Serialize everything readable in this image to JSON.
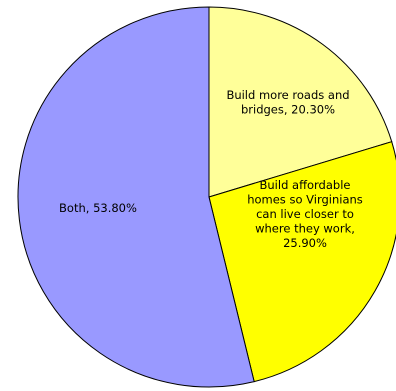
{
  "chart_data": {
    "type": "pie",
    "title": "",
    "slices": [
      {
        "label": "Build more roads and bridges",
        "value": 20.3,
        "display": [
          "Build more roads and",
          "bridges, 20.30%"
        ],
        "color": "#FFFF99"
      },
      {
        "label": "Build affordable homes so Virginians can live closer to where they work",
        "value": 25.9,
        "display": [
          "Build affordable",
          "homes so Virginians",
          "can live closer to",
          "where they work,",
          "25.90%"
        ],
        "color": "#FFFF00"
      },
      {
        "label": "Both",
        "value": 53.8,
        "display": [
          "Both, 53.80%"
        ],
        "color": "#9999FF"
      }
    ],
    "start_angle_deg": 0,
    "direction": "clockwise",
    "legend": "none"
  }
}
